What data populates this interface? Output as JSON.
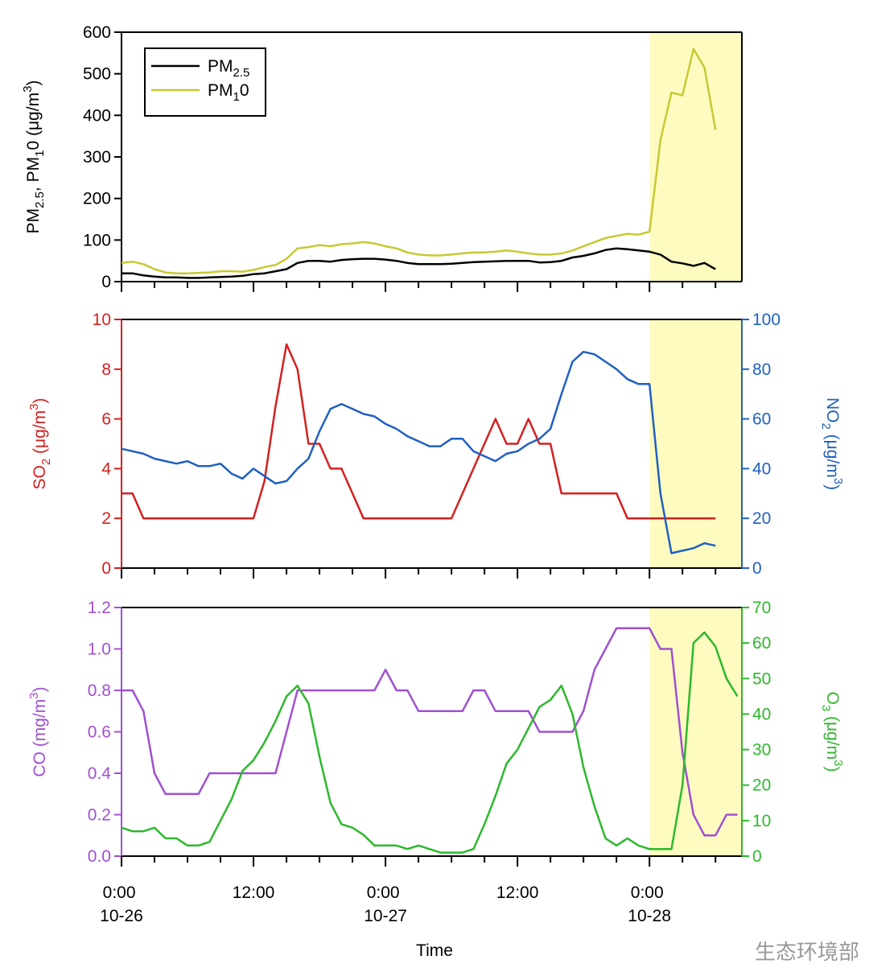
{
  "chart_data": [
    {
      "type": "line",
      "ylabel": "PM2.5, PM10 (μg/m3)",
      "x": [
        0,
        1,
        2,
        3,
        4,
        5,
        6,
        7,
        8,
        9,
        10,
        11,
        12,
        13,
        14,
        15,
        16,
        17,
        18,
        19,
        20,
        21,
        22,
        23,
        24,
        25,
        26,
        27,
        28,
        29,
        30,
        31,
        32,
        33,
        34,
        35,
        36,
        37,
        38,
        39,
        40,
        41,
        42,
        43,
        44,
        45,
        46,
        47,
        48,
        49,
        50,
        51,
        52,
        53,
        54
      ],
      "series": [
        {
          "name": "PM2.5",
          "color": "#000000",
          "values": [
            20,
            20,
            15,
            12,
            10,
            10,
            9,
            9,
            10,
            11,
            12,
            14,
            18,
            20,
            25,
            30,
            45,
            50,
            50,
            48,
            52,
            54,
            55,
            55,
            53,
            50,
            45,
            42,
            42,
            42,
            43,
            45,
            47,
            48,
            49,
            50,
            50,
            50,
            46,
            47,
            50,
            58,
            62,
            68,
            76,
            80,
            78,
            75,
            72,
            65,
            48,
            44,
            38,
            45,
            30
          ]
        },
        {
          "name": "PM10",
          "color": "#c8c832",
          "values": [
            45,
            48,
            42,
            30,
            22,
            20,
            20,
            21,
            22,
            25,
            25,
            24,
            28,
            35,
            40,
            55,
            80,
            83,
            88,
            85,
            90,
            92,
            95,
            92,
            85,
            80,
            70,
            65,
            63,
            63,
            65,
            68,
            70,
            70,
            72,
            75,
            72,
            68,
            65,
            65,
            68,
            75,
            85,
            95,
            105,
            110,
            115,
            113,
            120,
            340,
            455,
            448,
            560,
            515,
            365
          ]
        }
      ],
      "xlim": [
        0,
        56.4
      ],
      "ylim": [
        0,
        600
      ],
      "yticks": [
        0,
        100,
        200,
        300,
        400,
        500,
        600
      ],
      "highlight": [
        48,
        56.4
      ],
      "highlight_color": "#fdfbc0",
      "legend": "upper left"
    },
    {
      "type": "line",
      "ylabel": "SO2 (μg/m3)",
      "y2label": "NO2 (μg/m3)",
      "x": [
        0,
        1,
        2,
        3,
        4,
        5,
        6,
        7,
        8,
        9,
        10,
        11,
        12,
        13,
        14,
        15,
        16,
        17,
        18,
        19,
        20,
        21,
        22,
        23,
        24,
        25,
        26,
        27,
        28,
        29,
        30,
        31,
        32,
        33,
        34,
        35,
        36,
        37,
        38,
        39,
        40,
        41,
        42,
        43,
        44,
        45,
        46,
        47,
        48,
        49,
        50,
        51,
        52,
        53,
        54
      ],
      "series": [
        {
          "color": "#d42020",
          "values": [
            3,
            3,
            2,
            2,
            2,
            2,
            2,
            2,
            2,
            2,
            2,
            2,
            2,
            3.5,
            6.5,
            9,
            8,
            5,
            5,
            4,
            4,
            3,
            2,
            2,
            2,
            2,
            2,
            2,
            2,
            2,
            2,
            3,
            4,
            5,
            6,
            5,
            5,
            6,
            5,
            5,
            3,
            3,
            3,
            3,
            3,
            3,
            2,
            2,
            2,
            2,
            2,
            2,
            2,
            2,
            2
          ]
        },
        {
          "color": "#2060c0",
          "axis": "y2",
          "values": [
            48,
            47,
            46,
            44,
            43,
            42,
            43,
            41,
            41,
            42,
            38,
            36,
            40,
            37,
            34,
            35,
            40,
            44,
            55,
            64,
            66,
            64,
            62,
            61,
            58,
            56,
            53,
            51,
            49,
            49,
            52,
            52,
            47,
            45,
            43,
            46,
            47,
            50,
            52,
            56,
            70,
            83,
            87,
            86,
            83,
            80,
            76,
            74,
            74,
            30,
            6,
            7,
            8,
            10,
            9
          ]
        }
      ],
      "xlim": [
        0,
        56.4
      ],
      "ylim": [
        0,
        10
      ],
      "yticks": [
        0,
        2,
        4,
        6,
        8,
        10
      ],
      "y2lim": [
        0,
        100
      ],
      "y2ticks": [
        0,
        20,
        40,
        60,
        80,
        100
      ],
      "highlight": [
        48,
        56.4
      ],
      "highlight_color": "#fdfbc0"
    },
    {
      "type": "line",
      "ylabel": "CO (mg/m3)",
      "y2label": "O3 (μg/m3)",
      "xlabel": "Time",
      "x": [
        0,
        1,
        2,
        3,
        4,
        5,
        6,
        7,
        8,
        9,
        10,
        11,
        12,
        13,
        14,
        15,
        16,
        17,
        18,
        19,
        20,
        21,
        22,
        23,
        24,
        25,
        26,
        27,
        28,
        29,
        30,
        31,
        32,
        33,
        34,
        35,
        36,
        37,
        38,
        39,
        40,
        41,
        42,
        43,
        44,
        45,
        46,
        47,
        48,
        49,
        50,
        51,
        52,
        53,
        54,
        55,
        56
      ],
      "series": [
        {
          "color": "#a050d0",
          "values": [
            0.8,
            0.8,
            0.7,
            0.4,
            0.3,
            0.3,
            0.3,
            0.3,
            0.4,
            0.4,
            0.4,
            0.4,
            0.4,
            0.4,
            0.4,
            0.6,
            0.8,
            0.8,
            0.8,
            0.8,
            0.8,
            0.8,
            0.8,
            0.8,
            0.9,
            0.8,
            0.8,
            0.7,
            0.7,
            0.7,
            0.7,
            0.7,
            0.8,
            0.8,
            0.7,
            0.7,
            0.7,
            0.7,
            0.6,
            0.6,
            0.6,
            0.6,
            0.7,
            0.9,
            1.0,
            1.1,
            1.1,
            1.1,
            1.1,
            1.0,
            1.0,
            0.5,
            0.2,
            0.1,
            0.1,
            0.2,
            0.2
          ]
        },
        {
          "color": "#2db82d",
          "axis": "y2",
          "values": [
            8,
            7,
            7,
            8,
            5,
            5,
            3,
            3,
            4,
            10,
            16,
            24,
            27,
            32,
            38,
            45,
            48,
            43,
            28,
            15,
            9,
            8,
            6,
            3,
            3,
            3,
            2,
            3,
            2,
            1,
            1,
            1,
            2,
            9,
            17,
            26,
            30,
            36,
            42,
            44,
            48,
            40,
            25,
            14,
            5,
            3,
            5,
            3,
            2,
            2,
            2,
            20,
            60,
            63,
            59,
            50,
            45
          ]
        }
      ],
      "xlim": [
        0,
        56.4
      ],
      "xticks": [
        {
          "value": 0,
          "label": "0:00 10-26"
        },
        {
          "value": 12,
          "label": "12:00"
        },
        {
          "value": 24,
          "label": "0:00 10-27"
        },
        {
          "value": 36,
          "label": "12:00"
        },
        {
          "value": 48,
          "label": "0:00 10-28"
        }
      ],
      "xminorticks": [
        3,
        6,
        9,
        15,
        18,
        21,
        27,
        30,
        33,
        39,
        42,
        45,
        51,
        54
      ],
      "ylim": [
        0,
        1.2
      ],
      "yticks": [
        {
          "value": 0,
          "label": "0.0"
        },
        0.2,
        0.4,
        0.6,
        0.8,
        {
          "value": 1,
          "label": "1.0"
        },
        1.2
      ],
      "y2lim": [
        0,
        70
      ],
      "y2ticks": [
        0,
        10,
        20,
        30,
        40,
        50,
        60,
        70
      ],
      "highlight": [
        48,
        56.4
      ],
      "highlight_color": "#fdfbc0",
      "watermark": "生态环境部"
    }
  ]
}
